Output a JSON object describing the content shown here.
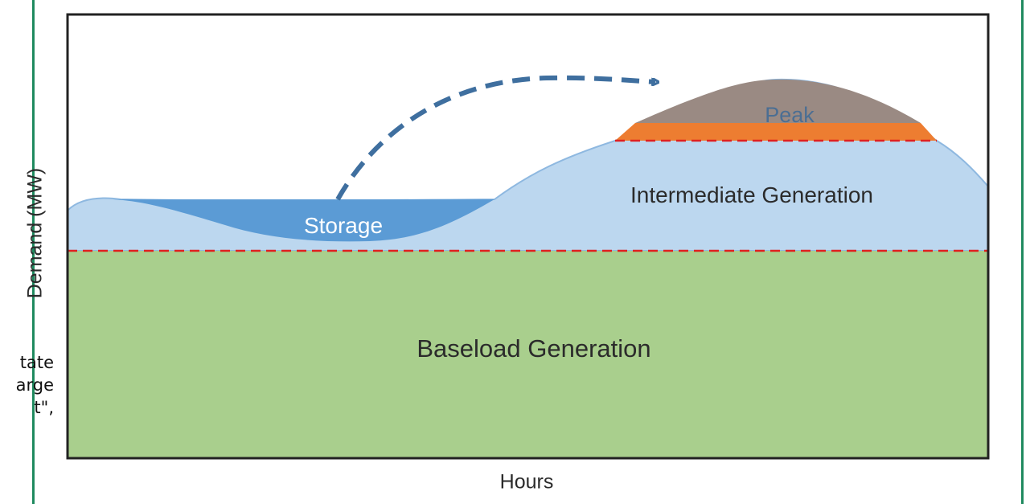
{
  "figure": {
    "regions": {
      "baseload": "Baseload Generation",
      "intermediate": "Intermediate Generation",
      "peak": "Peak",
      "storage": "Storage"
    },
    "axes": {
      "x_label": "Hours",
      "y_label": "Demand (MW)"
    },
    "colors": {
      "baseload": "#a9cf8d",
      "intermediate": "#bcd7ef",
      "storage": "#5b9bd5",
      "peak_top": "#9a8a83",
      "peak_band": "#ed7d31",
      "divider_lines": "#e02020",
      "arrow": "#3f6f9f",
      "side_rules": "#1f8a5f"
    }
  },
  "background_text": {
    "lines": [
      "tate",
      "arge",
      "t\","
    ]
  }
}
